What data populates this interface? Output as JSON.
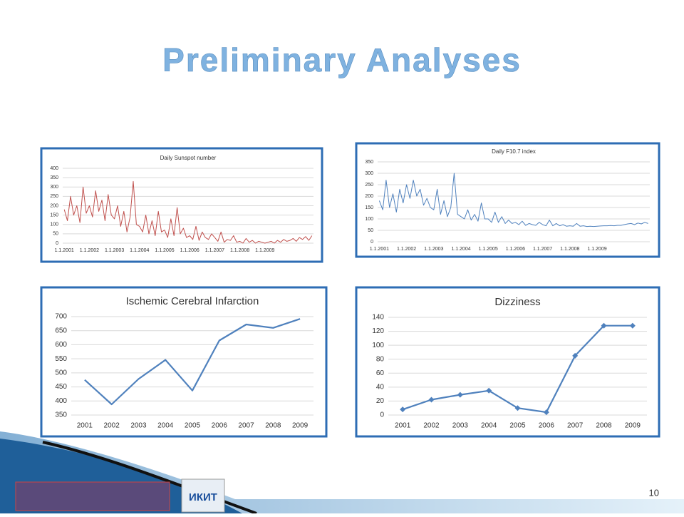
{
  "title": "Preliminary Analyses",
  "page_number": "10",
  "logo_text": "ИКИТ",
  "chart_data": [
    {
      "type": "line",
      "title": "Daily Sunspot number",
      "color": "#c0504d",
      "markers": false,
      "grid": true,
      "categories": [
        "1.1.2001",
        null,
        null,
        null,
        null,
        null,
        null,
        null,
        "1.1.2002",
        null,
        null,
        null,
        null,
        null,
        null,
        null,
        "1.1.2003",
        null,
        null,
        null,
        null,
        null,
        null,
        null,
        "1.1.2004",
        null,
        null,
        null,
        null,
        null,
        null,
        null,
        "1.1.2005",
        null,
        null,
        null,
        null,
        null,
        null,
        null,
        "1.1.2006",
        null,
        null,
        null,
        null,
        null,
        null,
        null,
        "1.1.2007",
        null,
        null,
        null,
        null,
        null,
        null,
        null,
        "1.1.2008",
        null,
        null,
        null,
        null,
        null,
        null,
        null,
        "1.1.2009",
        null,
        null,
        null,
        null,
        null,
        null,
        null,
        null,
        null,
        null,
        null,
        null,
        null,
        null,
        null
      ],
      "values": [
        180,
        120,
        250,
        150,
        200,
        110,
        300,
        160,
        200,
        140,
        280,
        170,
        230,
        120,
        260,
        150,
        130,
        200,
        90,
        170,
        60,
        140,
        330,
        100,
        90,
        60,
        150,
        50,
        120,
        40,
        170,
        60,
        70,
        30,
        130,
        40,
        190,
        50,
        80,
        30,
        40,
        20,
        90,
        15,
        60,
        30,
        20,
        50,
        30,
        10,
        60,
        5,
        20,
        15,
        40,
        5,
        10,
        0,
        25,
        5,
        15,
        0,
        10,
        5,
        0,
        5,
        10,
        0,
        15,
        5,
        20,
        10,
        15,
        25,
        10,
        30,
        20,
        35,
        15,
        40
      ],
      "ylim": [
        0,
        400
      ],
      "yticks": [
        0,
        50,
        100,
        150,
        200,
        250,
        300,
        350,
        400
      ]
    },
    {
      "type": "line",
      "title": "Daily F10.7 index",
      "color": "#4f81bd",
      "markers": false,
      "grid": true,
      "categories": [
        "1.1.2001",
        null,
        null,
        null,
        null,
        null,
        null,
        null,
        "1.1.2002",
        null,
        null,
        null,
        null,
        null,
        null,
        null,
        "1.1.2003",
        null,
        null,
        null,
        null,
        null,
        null,
        null,
        "1.1.2004",
        null,
        null,
        null,
        null,
        null,
        null,
        null,
        "1.1.2005",
        null,
        null,
        null,
        null,
        null,
        null,
        null,
        "1.1.2006",
        null,
        null,
        null,
        null,
        null,
        null,
        null,
        "1.1.2007",
        null,
        null,
        null,
        null,
        null,
        null,
        null,
        "1.1.2008",
        null,
        null,
        null,
        null,
        null,
        null,
        null,
        "1.1.2009",
        null,
        null,
        null,
        null,
        null,
        null,
        null,
        null,
        null,
        null,
        null,
        null,
        null,
        null,
        null
      ],
      "values": [
        180,
        140,
        270,
        150,
        210,
        130,
        230,
        170,
        250,
        190,
        270,
        200,
        230,
        160,
        190,
        150,
        140,
        230,
        120,
        180,
        110,
        150,
        300,
        120,
        110,
        100,
        140,
        95,
        120,
        90,
        170,
        100,
        100,
        85,
        130,
        85,
        110,
        80,
        95,
        80,
        85,
        75,
        90,
        72,
        80,
        75,
        72,
        85,
        75,
        70,
        95,
        70,
        80,
        70,
        75,
        68,
        70,
        68,
        80,
        68,
        70,
        67,
        68,
        67,
        68,
        69,
        70,
        70,
        71,
        70,
        72,
        72,
        75,
        78,
        80,
        75,
        82,
        78,
        85,
        80
      ],
      "ylim": [
        0,
        350
      ],
      "yticks": [
        0,
        50,
        100,
        150,
        200,
        250,
        300,
        350
      ]
    },
    {
      "type": "line",
      "title": "Ischemic Cerebral Infarction",
      "color": "#4f81bd",
      "markers": false,
      "grid": true,
      "categories": [
        "2001",
        "2002",
        "2003",
        "2004",
        "2005",
        "2006",
        "2007",
        "2008",
        "2009"
      ],
      "values": [
        475,
        388,
        478,
        546,
        437,
        615,
        672,
        660,
        692
      ],
      "ylim": [
        350,
        700
      ],
      "yticks": [
        350,
        400,
        450,
        500,
        550,
        600,
        650,
        700
      ]
    },
    {
      "type": "line",
      "title": "Dizziness",
      "color": "#4f81bd",
      "markers": true,
      "grid": true,
      "categories": [
        "2001",
        "2002",
        "2003",
        "2004",
        "2005",
        "2006",
        "2007",
        "2008",
        "2009"
      ],
      "values": [
        8,
        22,
        29,
        35,
        10,
        4,
        85,
        128,
        128
      ],
      "ylim": [
        0,
        140
      ],
      "yticks": [
        0,
        20,
        40,
        60,
        80,
        100,
        120,
        140
      ]
    }
  ]
}
